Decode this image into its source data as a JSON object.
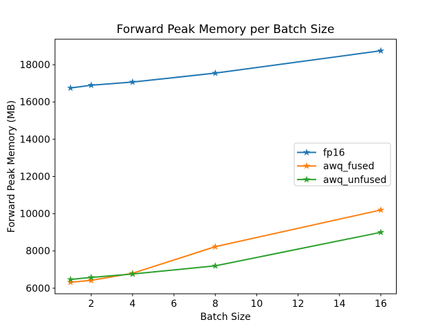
{
  "figure": {
    "background": "#ffffff",
    "spine_color": "#000000",
    "tick_color": "#000000"
  },
  "chart_data": {
    "type": "line",
    "title": "Forward Peak Memory per Batch Size",
    "xlabel": "Batch Size",
    "ylabel": "Forward Peak Memory (MB)",
    "x": [
      1,
      2,
      4,
      8,
      16
    ],
    "series": [
      {
        "name": "fp16",
        "color": "#1f77b4",
        "marker": "star",
        "values": [
          16750,
          16900,
          17070,
          17550,
          18750
        ]
      },
      {
        "name": "awq_fused",
        "color": "#ff7f0e",
        "marker": "star",
        "values": [
          6320,
          6420,
          6800,
          8230,
          10200
        ]
      },
      {
        "name": "awq_unfused",
        "color": "#2ca02c",
        "marker": "star",
        "values": [
          6470,
          6580,
          6760,
          7200,
          9000
        ]
      }
    ],
    "xticks": [
      2,
      4,
      6,
      8,
      10,
      12,
      14,
      16
    ],
    "yticks": [
      6000,
      8000,
      10000,
      12000,
      14000,
      16000,
      18000
    ],
    "xlim": [
      0.25,
      16.75
    ],
    "ylim": [
      5700,
      19370
    ],
    "grid": false,
    "legend": {
      "position": "center-right",
      "entries": [
        "fp16",
        "awq_fused",
        "awq_unfused"
      ]
    }
  }
}
